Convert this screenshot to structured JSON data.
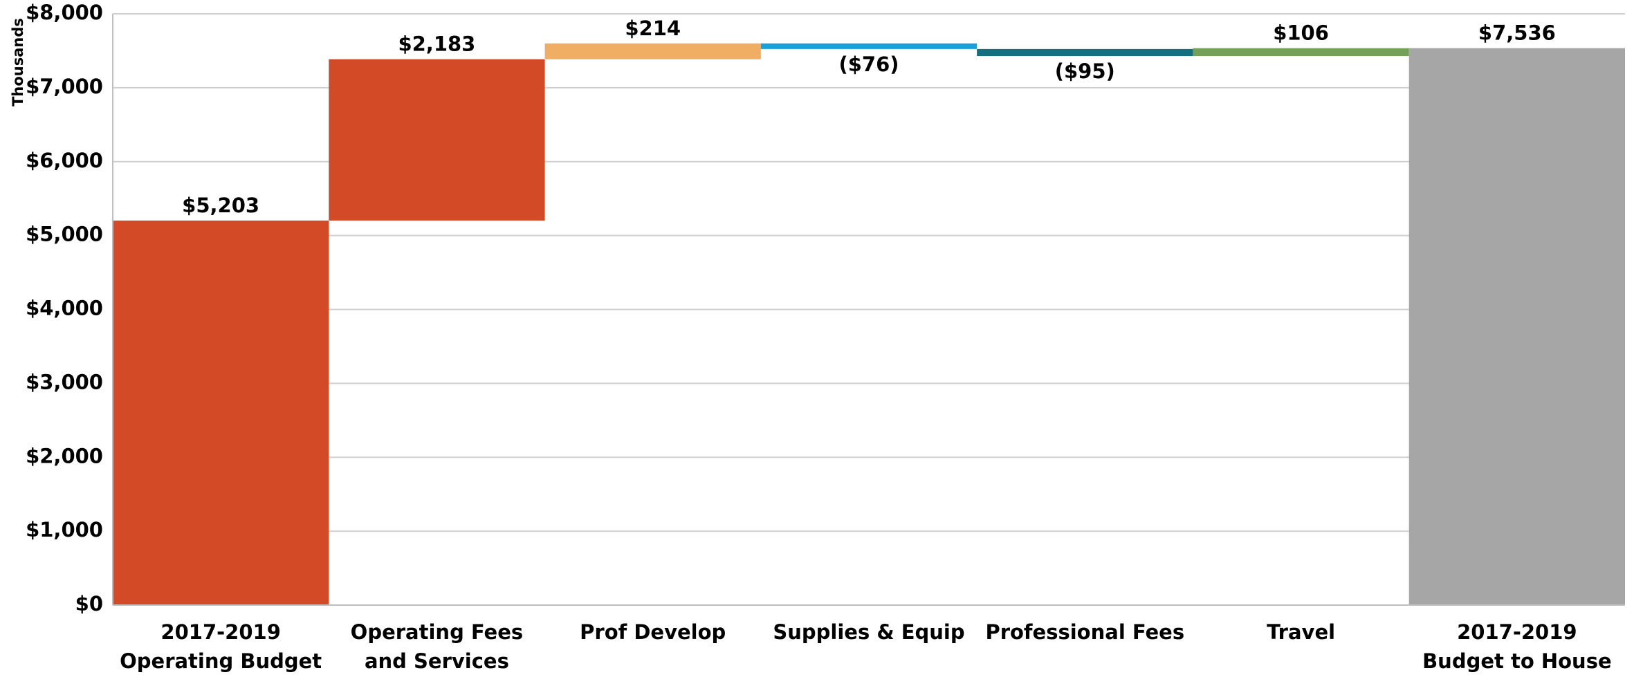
{
  "chart_data": {
    "type": "waterfall",
    "y_label": "Thousands",
    "categories": [
      "2017-2019\nOperating Budget",
      "Operating Fees\nand Services",
      "Prof Develop",
      "Supplies & Equip",
      "Professional Fees",
      "Travel",
      "2017-2019\nBudget to House"
    ],
    "values": [
      5203,
      2183,
      214,
      -76,
      -95,
      106,
      7536
    ],
    "value_labels": [
      "$5,203",
      "$2,183",
      "$214",
      "($76)",
      "($95)",
      "$106",
      "$7,536"
    ],
    "is_total": [
      true,
      false,
      false,
      false,
      false,
      false,
      true
    ],
    "colors": [
      "#d34a27",
      "#d34a27",
      "#f0ad64",
      "#1aa0d8",
      "#137080",
      "#74a057",
      "#a6a6a6"
    ],
    "ylim": [
      0,
      8000
    ],
    "yticks": [
      {
        "value": 0,
        "label": "$0"
      },
      {
        "value": 1000,
        "label": "$1,000"
      },
      {
        "value": 2000,
        "label": "$2,000"
      },
      {
        "value": 3000,
        "label": "$3,000"
      },
      {
        "value": 4000,
        "label": "$4,000"
      },
      {
        "value": 5000,
        "label": "$5,000"
      },
      {
        "value": 6000,
        "label": "$6,000"
      },
      {
        "value": 7000,
        "label": "$7,000"
      },
      {
        "value": 8000,
        "label": "$8,000"
      }
    ],
    "grid": true
  }
}
